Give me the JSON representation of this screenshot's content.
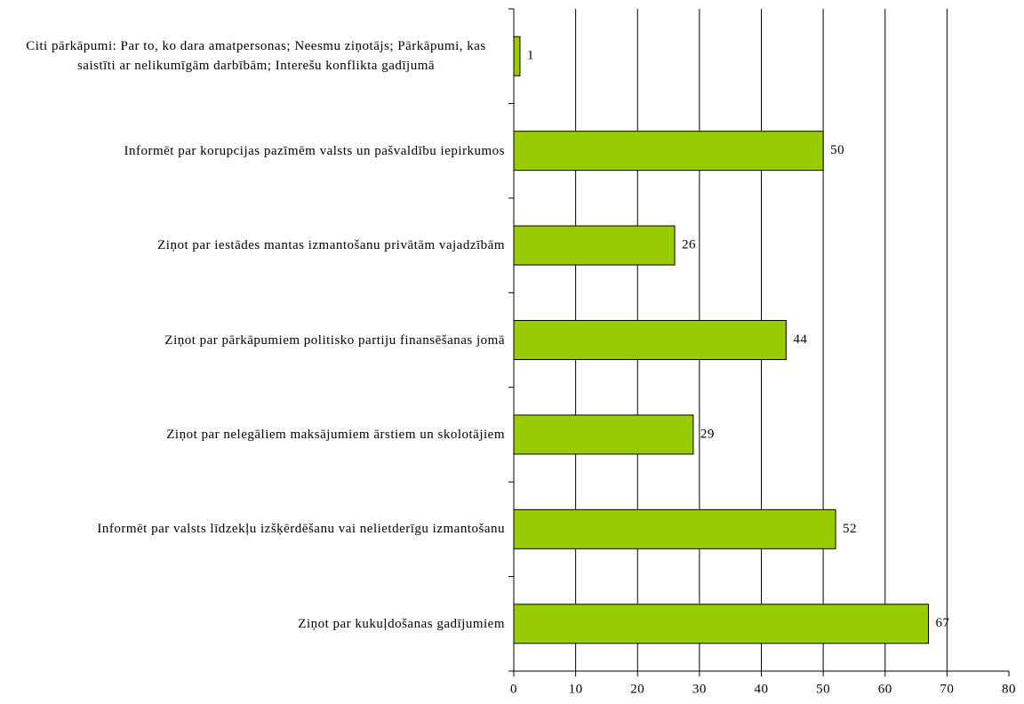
{
  "chart_data": {
    "type": "bar",
    "orientation": "horizontal",
    "categories": [
      "Citi pārkāpumi: Par to, ko dara amatpersonas; Neesmu ziņotājs; Pārkāpumi, kas saistīti ar nelikumīgām darbībām; Interešu konflikta gadījumā",
      "Informēt par korupcijas pazīmēm valsts un pašvaldību iepirkumos",
      "Ziņot par iestādes mantas izmantošanu privātām vajadzībām",
      "Ziņot par pārkāpumiem politisko partiju finansēšanas jomā",
      "Ziņot par nelegāliem maksājumiem ārstiem un skolotājiem",
      "Informēt par valsts līdzekļu izšķērdēšanu vai nelietderīgu izmantošanu",
      "Ziņot par kukuļdošanas gadījumiem"
    ],
    "values": [
      1,
      50,
      26,
      44,
      29,
      52,
      67
    ],
    "color": "#99cc00",
    "xlim": [
      0,
      80
    ],
    "xticks": [
      0,
      10,
      20,
      30,
      40,
      50,
      60,
      70,
      80
    ],
    "grid": true
  }
}
